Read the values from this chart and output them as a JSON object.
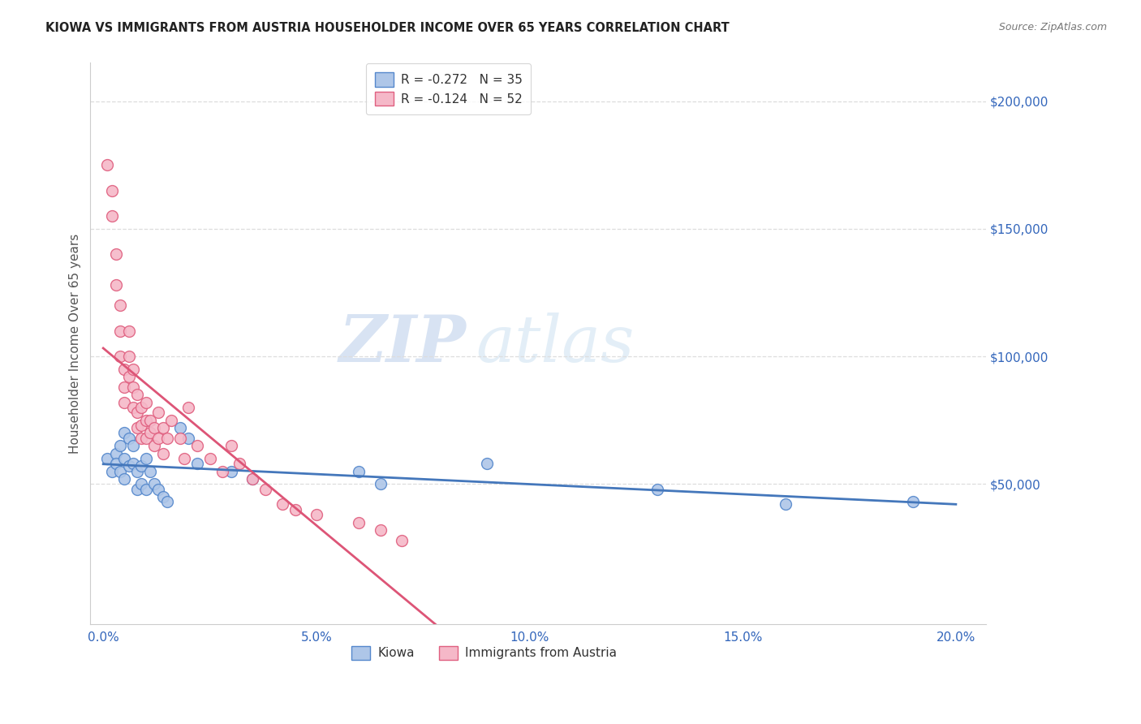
{
  "title": "KIOWA VS IMMIGRANTS FROM AUSTRIA HOUSEHOLDER INCOME OVER 65 YEARS CORRELATION CHART",
  "source": "Source: ZipAtlas.com",
  "xlabel_ticks": [
    "0.0%",
    "5.0%",
    "10.0%",
    "15.0%",
    "20.0%"
  ],
  "xlabel_tick_vals": [
    0.0,
    0.05,
    0.1,
    0.15,
    0.2
  ],
  "ylabel": "Householder Income Over 65 years",
  "ylabel_ticks": [
    "$50,000",
    "$100,000",
    "$150,000",
    "$200,000"
  ],
  "ylabel_tick_vals": [
    50000,
    100000,
    150000,
    200000
  ],
  "ylim": [
    -5000,
    215000
  ],
  "xlim": [
    -0.003,
    0.207
  ],
  "watermark_line1": "ZIP",
  "watermark_line2": "atlas",
  "legend_kiowa": "R = -0.272   N = 35",
  "legend_austria": "R = -0.124   N = 52",
  "kiowa_color": "#aec6e8",
  "austria_color": "#f5b8c8",
  "kiowa_edge_color": "#5588cc",
  "austria_edge_color": "#e06080",
  "kiowa_line_color": "#4477bb",
  "austria_line_color": "#dd5577",
  "austria_dash_color": "#ccbbdd",
  "background_color": "#ffffff",
  "grid_color": "#dddddd",
  "kiowa_scatter_x": [
    0.001,
    0.002,
    0.003,
    0.003,
    0.004,
    0.004,
    0.005,
    0.005,
    0.005,
    0.006,
    0.006,
    0.007,
    0.007,
    0.008,
    0.008,
    0.009,
    0.009,
    0.01,
    0.01,
    0.011,
    0.012,
    0.013,
    0.014,
    0.015,
    0.018,
    0.02,
    0.022,
    0.03,
    0.035,
    0.06,
    0.065,
    0.09,
    0.13,
    0.16,
    0.19
  ],
  "kiowa_scatter_y": [
    60000,
    55000,
    62000,
    58000,
    65000,
    55000,
    70000,
    60000,
    52000,
    68000,
    57000,
    65000,
    58000,
    55000,
    48000,
    57000,
    50000,
    60000,
    48000,
    55000,
    50000,
    48000,
    45000,
    43000,
    72000,
    68000,
    58000,
    55000,
    52000,
    55000,
    50000,
    58000,
    48000,
    42000,
    43000
  ],
  "austria_scatter_x": [
    0.001,
    0.002,
    0.002,
    0.003,
    0.003,
    0.004,
    0.004,
    0.004,
    0.005,
    0.005,
    0.005,
    0.006,
    0.006,
    0.006,
    0.007,
    0.007,
    0.007,
    0.008,
    0.008,
    0.008,
    0.009,
    0.009,
    0.009,
    0.01,
    0.01,
    0.01,
    0.011,
    0.011,
    0.012,
    0.012,
    0.013,
    0.013,
    0.014,
    0.014,
    0.015,
    0.016,
    0.018,
    0.019,
    0.02,
    0.022,
    0.025,
    0.028,
    0.03,
    0.032,
    0.035,
    0.038,
    0.042,
    0.045,
    0.05,
    0.06,
    0.065,
    0.07
  ],
  "austria_scatter_y": [
    175000,
    165000,
    155000,
    140000,
    128000,
    120000,
    110000,
    100000,
    95000,
    88000,
    82000,
    110000,
    100000,
    92000,
    95000,
    88000,
    80000,
    85000,
    78000,
    72000,
    80000,
    73000,
    68000,
    82000,
    75000,
    68000,
    75000,
    70000,
    72000,
    65000,
    78000,
    68000,
    72000,
    62000,
    68000,
    75000,
    68000,
    60000,
    80000,
    65000,
    60000,
    55000,
    65000,
    58000,
    52000,
    48000,
    42000,
    40000,
    38000,
    35000,
    32000,
    28000
  ]
}
